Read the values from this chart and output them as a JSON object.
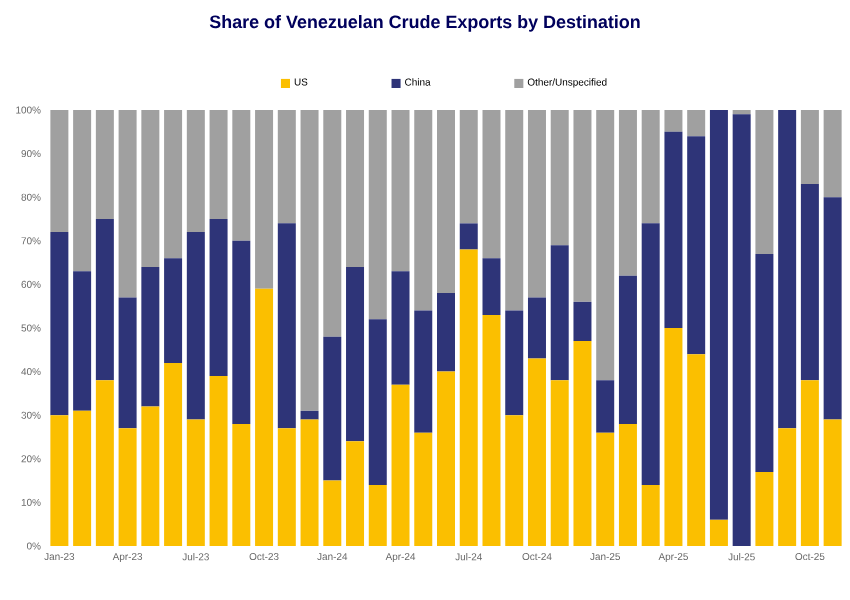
{
  "chart_data": {
    "type": "bar",
    "stacked": true,
    "title": "Share of Venezuelan Crude Exports by Destination",
    "categories": [
      "Jan-23",
      null,
      null,
      "Apr-23",
      null,
      null,
      "Jul-23",
      null,
      null,
      "Oct-23",
      null,
      null,
      "Jan-24",
      null,
      null,
      "Apr-24",
      null,
      null,
      "Jul-24",
      null,
      null,
      "Oct-24",
      null,
      null,
      "Jan-25",
      null,
      null,
      "Apr-25",
      null,
      null,
      "Jul-25",
      null,
      null,
      "Oct-25",
      null
    ],
    "series": [
      {
        "name": "US",
        "color": "#fbbf00",
        "values": [
          30,
          31,
          38,
          27,
          32,
          42,
          29,
          39,
          28,
          59,
          27,
          29,
          15,
          24,
          14,
          37,
          26,
          40,
          68,
          53,
          30,
          43,
          38,
          47,
          26,
          28,
          14,
          50,
          44,
          6,
          0,
          17,
          27,
          38,
          29
        ]
      },
      {
        "name": "China",
        "color": "#2e3478",
        "values": [
          42,
          32,
          37,
          30,
          32,
          24,
          43,
          36,
          42,
          0,
          47,
          2,
          33,
          40,
          38,
          26,
          28,
          18,
          6,
          13,
          24,
          14,
          31,
          9,
          12,
          34,
          60,
          45,
          50,
          94,
          99,
          50,
          73,
          45,
          51
        ]
      },
      {
        "name": "Other/Unspecified",
        "color": "#a0a0a0",
        "values": [
          28,
          37,
          25,
          43,
          36,
          34,
          28,
          25,
          30,
          41,
          26,
          69,
          52,
          36,
          48,
          37,
          46,
          42,
          26,
          34,
          46,
          43,
          31,
          44,
          62,
          38,
          26,
          5,
          6,
          0,
          1,
          33,
          0,
          17,
          20
        ]
      }
    ],
    "ylim": [
      0,
      100
    ],
    "yticks": [
      {
        "value": 0,
        "label": "0%"
      },
      {
        "value": 10,
        "label": "10%"
      },
      {
        "value": 20,
        "label": "20%"
      },
      {
        "value": 30,
        "label": "30%"
      },
      {
        "value": 40,
        "label": "40%"
      },
      {
        "value": 50,
        "label": "50%"
      },
      {
        "value": 60,
        "label": "60%"
      },
      {
        "value": 70,
        "label": "70%"
      },
      {
        "value": 80,
        "label": "80%"
      },
      {
        "value": 90,
        "label": "90%"
      },
      {
        "value": 100,
        "label": "100%"
      }
    ],
    "grid": false,
    "legend": "top"
  }
}
